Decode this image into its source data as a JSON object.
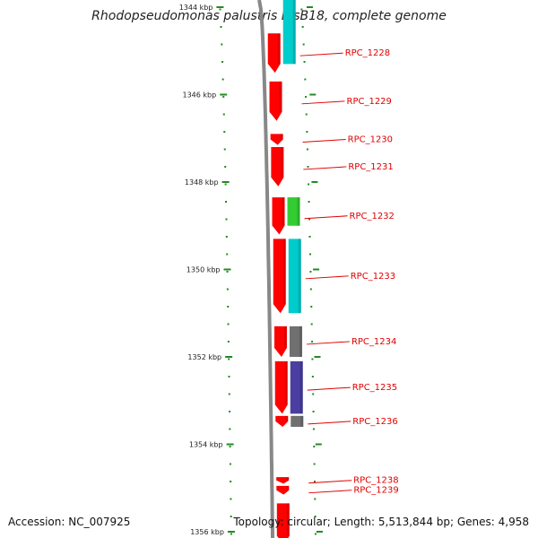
{
  "title": "Rhodopseudomonas palustris BisB18, complete genome",
  "accession": "Accession: NC_007925",
  "summary": "Topology: circular; Length: 5,513,844 bp; Genes: 4,958",
  "colors": {
    "backbone": "#888888",
    "forward_cds": "#ff0000",
    "cyan": "#00cccc",
    "green": "#33cc33",
    "gray": "#707070",
    "purple": "#4a3fa0",
    "tick": "#228b22",
    "label": "#e00000"
  },
  "scale_labels": [
    {
      "text": "1344 kbp",
      "kbp": 1344
    },
    {
      "text": "1346 kbp",
      "kbp": 1346
    },
    {
      "text": "1348 kbp",
      "kbp": 1348
    },
    {
      "text": "1350 kbp",
      "kbp": 1350
    },
    {
      "text": "1352 kbp",
      "kbp": 1352
    },
    {
      "text": "1354 kbp",
      "kbp": 1354
    },
    {
      "text": "1356 kbp",
      "kbp": 1356
    }
  ],
  "genes": [
    {
      "label": "RPC_1228",
      "start_kbp": 1344.6,
      "end_kbp": 1345.5,
      "color": "red",
      "track2": "cyan",
      "track2_start": 1343.6,
      "track2_end": 1345.3
    },
    {
      "label": "RPC_1229",
      "start_kbp": 1345.7,
      "end_kbp": 1346.6,
      "color": "red"
    },
    {
      "label": "RPC_1230",
      "start_kbp": 1346.9,
      "end_kbp": 1347.15,
      "color": "red"
    },
    {
      "label": "RPC_1231",
      "start_kbp": 1347.2,
      "end_kbp": 1348.1,
      "color": "red"
    },
    {
      "label": "RPC_1232",
      "start_kbp": 1348.35,
      "end_kbp": 1349.2,
      "color": "red",
      "track2": "green",
      "track2_start": 1348.35,
      "track2_end": 1349.0
    },
    {
      "label": "RPC_1233",
      "start_kbp": 1349.3,
      "end_kbp": 1351.0,
      "color": "red",
      "track2": "cyan",
      "track2_start": 1349.3,
      "track2_end": 1351.0
    },
    {
      "label": "RPC_1234",
      "start_kbp": 1351.3,
      "end_kbp": 1352.0,
      "color": "red",
      "track2": "gray",
      "track2_start": 1351.3,
      "track2_end": 1352.0
    },
    {
      "label": "RPC_1235",
      "start_kbp": 1352.1,
      "end_kbp": 1353.3,
      "color": "red",
      "track2": "purple",
      "track2_start": 1352.1,
      "track2_end": 1353.3
    },
    {
      "label": "RPC_1236",
      "start_kbp": 1353.35,
      "end_kbp": 1353.6,
      "color": "red",
      "track2": "gray",
      "track2_start": 1353.35,
      "track2_end": 1353.6
    },
    {
      "label": "RPC_1238",
      "start_kbp": 1354.75,
      "end_kbp": 1354.9,
      "color": "red"
    },
    {
      "label": "RPC_1239",
      "start_kbp": 1354.95,
      "end_kbp": 1355.15,
      "color": "red"
    },
    {
      "label": "",
      "start_kbp": 1355.35,
      "end_kbp": 1356.3,
      "color": "red"
    }
  ]
}
